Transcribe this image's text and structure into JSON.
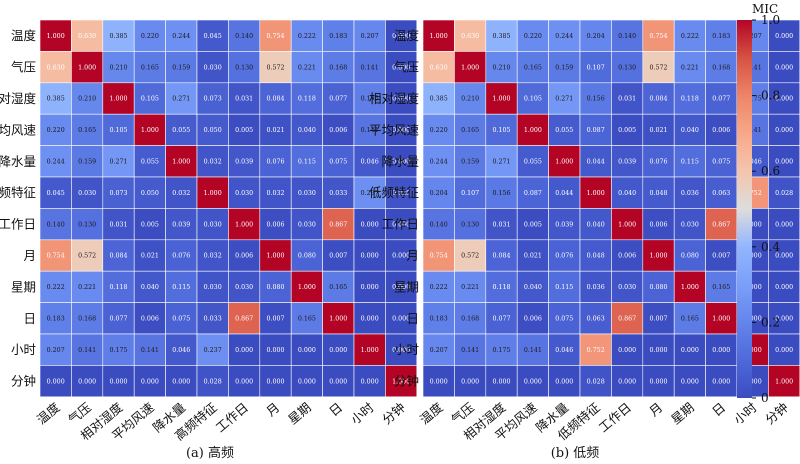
{
  "colors": {
    "low": "#3b4cc0",
    "mid": "#dddddd",
    "high": "#b40426",
    "grid_line": "#ffffff"
  },
  "colorbar": {
    "title": "MIC",
    "ticks": [
      "0",
      "0.2",
      "0.4",
      "0.6",
      "0.8",
      "1.0"
    ],
    "range": [
      0,
      1
    ]
  },
  "chart_data": [
    {
      "type": "heatmap",
      "caption": "(a) 高频",
      "labels": [
        "温度",
        "气压",
        "相对湿度",
        "平均风速",
        "降水量",
        "高频特征",
        "工作日",
        "月",
        "星期",
        "日",
        "小时",
        "分钟"
      ],
      "values": [
        [
          "1.000",
          "0.630",
          "0.385",
          "0.220",
          "0.244",
          "0.045",
          "0.140",
          "0.754",
          "0.222",
          "0.183",
          "0.207",
          "0.000"
        ],
        [
          "0.630",
          "1.000",
          "0.210",
          "0.165",
          "0.159",
          "0.030",
          "0.130",
          "0.572",
          "0.221",
          "0.168",
          "0.141",
          "0.000"
        ],
        [
          "0.385",
          "0.210",
          "1.000",
          "0.105",
          "0.271",
          "0.073",
          "0.031",
          "0.084",
          "0.118",
          "0.077",
          "0.175",
          "0.000"
        ],
        [
          "0.220",
          "0.165",
          "0.105",
          "1.000",
          "0.055",
          "0.050",
          "0.005",
          "0.021",
          "0.040",
          "0.006",
          "0.141",
          "0.000"
        ],
        [
          "0.244",
          "0.159",
          "0.271",
          "0.055",
          "1.000",
          "0.032",
          "0.039",
          "0.076",
          "0.115",
          "0.075",
          "0.046",
          "0.000"
        ],
        [
          "0.045",
          "0.030",
          "0.073",
          "0.050",
          "0.032",
          "1.000",
          "0.030",
          "0.032",
          "0.030",
          "0.033",
          "0.237",
          "0.028"
        ],
        [
          "0.140",
          "0.130",
          "0.031",
          "0.005",
          "0.039",
          "0.030",
          "1.000",
          "0.006",
          "0.030",
          "0.867",
          "0.000",
          "0.000"
        ],
        [
          "0.754",
          "0.572",
          "0.084",
          "0.021",
          "0.076",
          "0.032",
          "0.006",
          "1.000",
          "0.080",
          "0.007",
          "0.000",
          "0.000"
        ],
        [
          "0.222",
          "0.221",
          "0.118",
          "0.040",
          "0.115",
          "0.030",
          "0.030",
          "0.080",
          "1.000",
          "0.165",
          "0.000",
          "0.000"
        ],
        [
          "0.183",
          "0.168",
          "0.077",
          "0.006",
          "0.075",
          "0.033",
          "0.867",
          "0.007",
          "0.165",
          "1.000",
          "0.000",
          "0.000"
        ],
        [
          "0.207",
          "0.141",
          "0.175",
          "0.141",
          "0.046",
          "0.237",
          "0.000",
          "0.000",
          "0.000",
          "0.000",
          "1.000",
          "0.000"
        ],
        [
          "0.000",
          "0.000",
          "0.000",
          "0.000",
          "0.000",
          "0.028",
          "0.000",
          "0.000",
          "0.000",
          "0.000",
          "0.000",
          "1.000"
        ]
      ]
    },
    {
      "type": "heatmap",
      "caption": "(b) 低频",
      "labels": [
        "温度",
        "气压",
        "相对湿度",
        "平均风速",
        "降水量",
        "低频特征",
        "工作日",
        "月",
        "星期",
        "日",
        "小时",
        "分钟"
      ],
      "values": [
        [
          "1.000",
          "0.630",
          "0.385",
          "0.220",
          "0.244",
          "0.204",
          "0.140",
          "0.754",
          "0.222",
          "0.183",
          "0.207",
          "0.000"
        ],
        [
          "0.630",
          "1.000",
          "0.210",
          "0.165",
          "0.159",
          "0.107",
          "0.130",
          "0.572",
          "0.221",
          "0.168",
          "0.141",
          "0.000"
        ],
        [
          "0.385",
          "0.210",
          "1.000",
          "0.105",
          "0.271",
          "0.156",
          "0.031",
          "0.084",
          "0.118",
          "0.077",
          "0.175",
          "0.000"
        ],
        [
          "0.220",
          "0.165",
          "0.105",
          "1.000",
          "0.055",
          "0.087",
          "0.005",
          "0.021",
          "0.040",
          "0.006",
          "0.141",
          "0.000"
        ],
        [
          "0.244",
          "0.159",
          "0.271",
          "0.055",
          "1.000",
          "0.044",
          "0.039",
          "0.076",
          "0.115",
          "0.075",
          "0.046",
          "0.000"
        ],
        [
          "0.204",
          "0.107",
          "0.156",
          "0.087",
          "0.044",
          "1.000",
          "0.040",
          "0.048",
          "0.036",
          "0.063",
          "0.752",
          "0.028"
        ],
        [
          "0.140",
          "0.130",
          "0.031",
          "0.005",
          "0.039",
          "0.040",
          "1.000",
          "0.006",
          "0.030",
          "0.867",
          "0.000",
          "0.000"
        ],
        [
          "0.754",
          "0.572",
          "0.084",
          "0.021",
          "0.076",
          "0.048",
          "0.006",
          "1.000",
          "0.080",
          "0.007",
          "0.000",
          "0.000"
        ],
        [
          "0.222",
          "0.221",
          "0.118",
          "0.040",
          "0.115",
          "0.036",
          "0.030",
          "0.080",
          "1.000",
          "0.165",
          "0.000",
          "0.000"
        ],
        [
          "0.183",
          "0.168",
          "0.077",
          "0.006",
          "0.075",
          "0.063",
          "0.867",
          "0.007",
          "0.165",
          "1.000",
          "0.000",
          "0.000"
        ],
        [
          "0.207",
          "0.141",
          "0.175",
          "0.141",
          "0.046",
          "0.752",
          "0.000",
          "0.000",
          "0.000",
          "0.000",
          "1.000",
          "0.000"
        ],
        [
          "0.000",
          "0.000",
          "0.000",
          "0.000",
          "0.000",
          "0.028",
          "0.000",
          "0.000",
          "0.000",
          "0.000",
          "0.000",
          "1.000"
        ]
      ]
    }
  ]
}
